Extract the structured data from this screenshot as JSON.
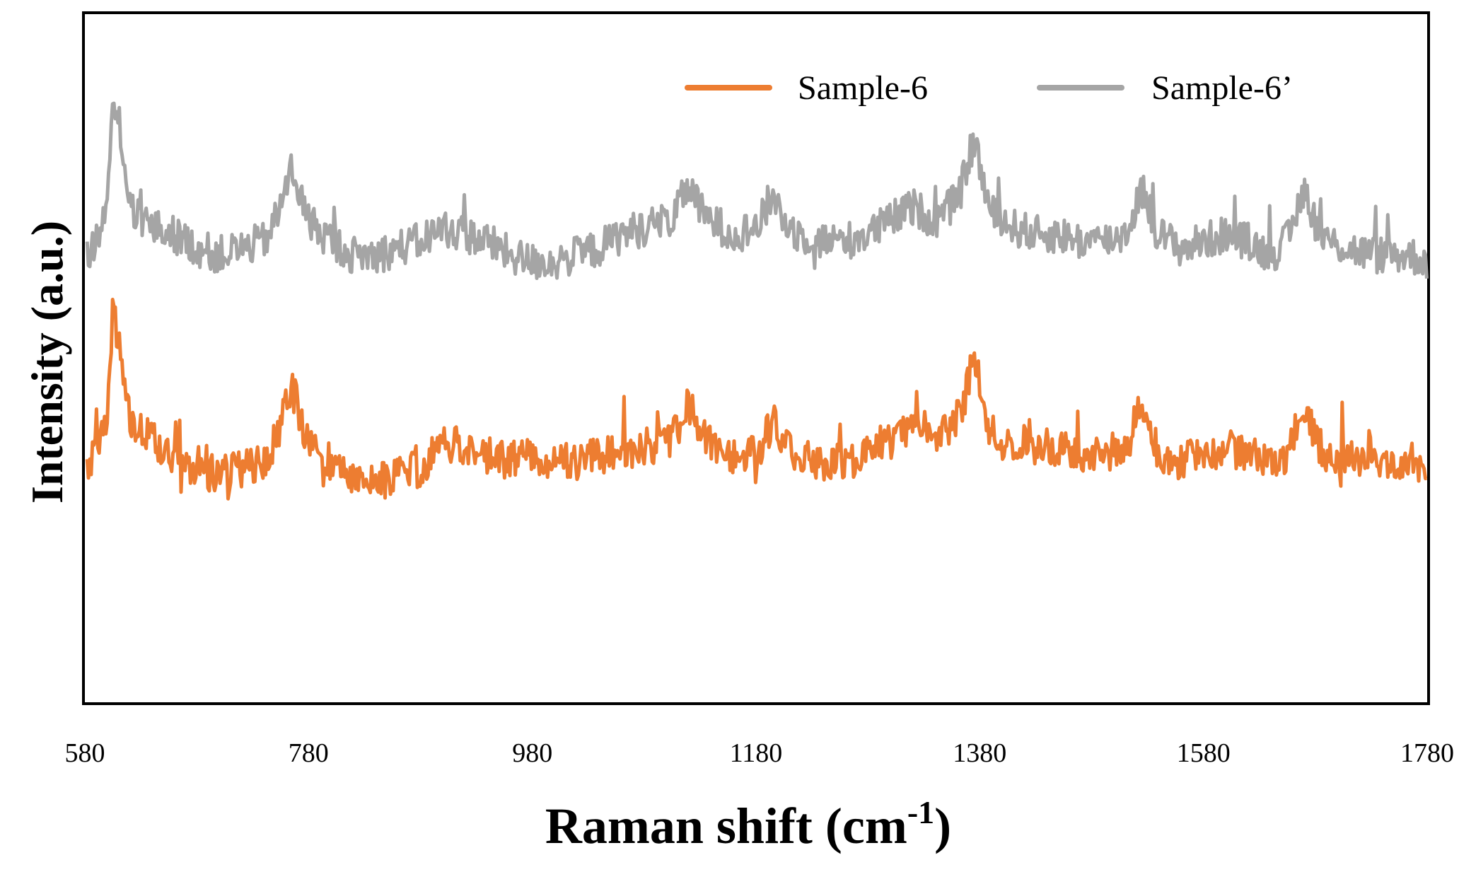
{
  "chart_data": {
    "type": "line",
    "title": "",
    "xlabel": "Raman shift (cm",
    "xlabel_superscript": "-1",
    "xlabel_suffix": ")",
    "ylabel": "Intensity (a.u.)",
    "xlim": [
      580,
      1780
    ],
    "ylim": [
      0,
      10
    ],
    "xticks": [
      "580",
      "780",
      "980",
      "1180",
      "1380",
      "1580",
      "1780"
    ],
    "grid": false,
    "legend_position": "top-right",
    "peaks": [
      605,
      765,
      1120,
      1195,
      1375,
      1525,
      1670
    ],
    "series": [
      {
        "name": "Sample-6",
        "color": "#ED7D31",
        "x": [
          580,
          600,
          605,
          620,
          640,
          660,
          680,
          700,
          720,
          740,
          765,
          780,
          800,
          820,
          840,
          860,
          880,
          900,
          920,
          940,
          960,
          980,
          1000,
          1020,
          1040,
          1060,
          1080,
          1100,
          1120,
          1140,
          1160,
          1180,
          1195,
          1220,
          1240,
          1260,
          1280,
          1300,
          1320,
          1340,
          1360,
          1375,
          1390,
          1410,
          1430,
          1450,
          1470,
          1490,
          1510,
          1525,
          1540,
          1560,
          1580,
          1600,
          1620,
          1640,
          1655,
          1670,
          1690,
          1710,
          1730,
          1750,
          1765,
          1780
        ],
        "values": [
          3.3,
          3.9,
          5.4,
          4.1,
          3.8,
          3.6,
          3.4,
          3.3,
          3.4,
          3.5,
          4.2,
          3.7,
          3.5,
          3.3,
          3.2,
          3.3,
          3.4,
          3.8,
          3.7,
          3.6,
          3.5,
          3.6,
          3.5,
          3.5,
          3.6,
          3.6,
          3.7,
          3.8,
          3.95,
          3.8,
          3.6,
          3.6,
          3.7,
          3.6,
          3.5,
          3.5,
          3.6,
          3.8,
          4.0,
          3.9,
          4.1,
          4.6,
          3.9,
          3.8,
          3.7,
          3.7,
          3.6,
          3.6,
          3.7,
          4.0,
          3.6,
          3.5,
          3.6,
          3.7,
          3.6,
          3.5,
          3.6,
          4.0,
          3.6,
          3.6,
          3.5,
          3.5,
          3.5,
          3.4
        ]
      },
      {
        "name": "Sample-6’",
        "color": "#A5A5A5",
        "x": [
          580,
          600,
          605,
          620,
          640,
          660,
          680,
          700,
          720,
          740,
          765,
          780,
          800,
          820,
          840,
          860,
          880,
          900,
          920,
          940,
          960,
          980,
          1000,
          1020,
          1040,
          1060,
          1080,
          1100,
          1120,
          1140,
          1160,
          1180,
          1195,
          1220,
          1240,
          1260,
          1280,
          1300,
          1320,
          1340,
          1360,
          1375,
          1390,
          1410,
          1430,
          1450,
          1470,
          1490,
          1510,
          1525,
          1540,
          1560,
          1580,
          1600,
          1620,
          1640,
          1655,
          1670,
          1690,
          1710,
          1730,
          1750,
          1765,
          1780
        ],
        "values": [
          6.4,
          7.0,
          8.5,
          7.2,
          6.9,
          6.8,
          6.6,
          6.5,
          6.6,
          6.7,
          7.4,
          7.0,
          6.7,
          6.5,
          6.5,
          6.6,
          6.7,
          6.9,
          6.8,
          6.7,
          6.5,
          6.4,
          6.4,
          6.5,
          6.6,
          6.8,
          6.9,
          7.0,
          7.15,
          7.0,
          6.8,
          6.9,
          7.0,
          6.8,
          6.7,
          6.7,
          6.8,
          7.0,
          7.2,
          7.0,
          7.3,
          7.8,
          7.1,
          6.9,
          6.8,
          6.8,
          6.7,
          6.7,
          6.8,
          7.1,
          6.8,
          6.6,
          6.7,
          6.8,
          6.7,
          6.5,
          6.7,
          7.1,
          6.7,
          6.6,
          6.5,
          6.5,
          6.5,
          6.4
        ]
      }
    ]
  }
}
